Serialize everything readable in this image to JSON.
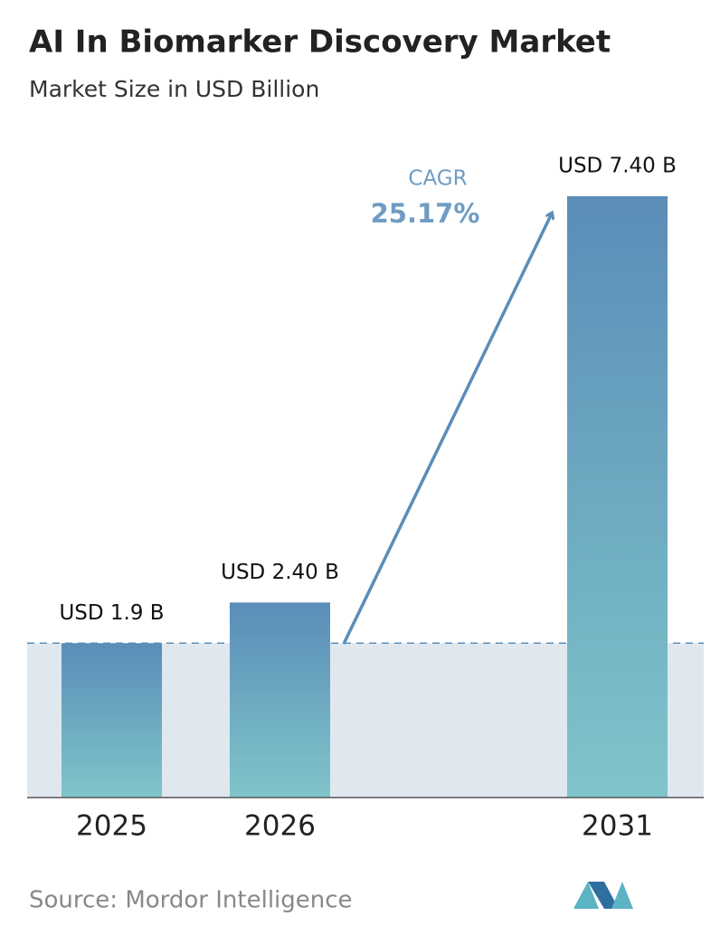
{
  "chart_data": {
    "type": "bar",
    "title": "AI In Biomarker Discovery Market",
    "subtitle": "Market Size in USD Billion",
    "categories": [
      "2025",
      "2026",
      "2031"
    ],
    "values": [
      1.9,
      2.4,
      7.4
    ],
    "value_labels": [
      "USD 1.9 B",
      "USD 2.40 B",
      "USD 7.40 B"
    ],
    "annotations": [
      "CAGR",
      "25.17%"
    ],
    "source": "Source: Mordor Intelligence"
  }
}
